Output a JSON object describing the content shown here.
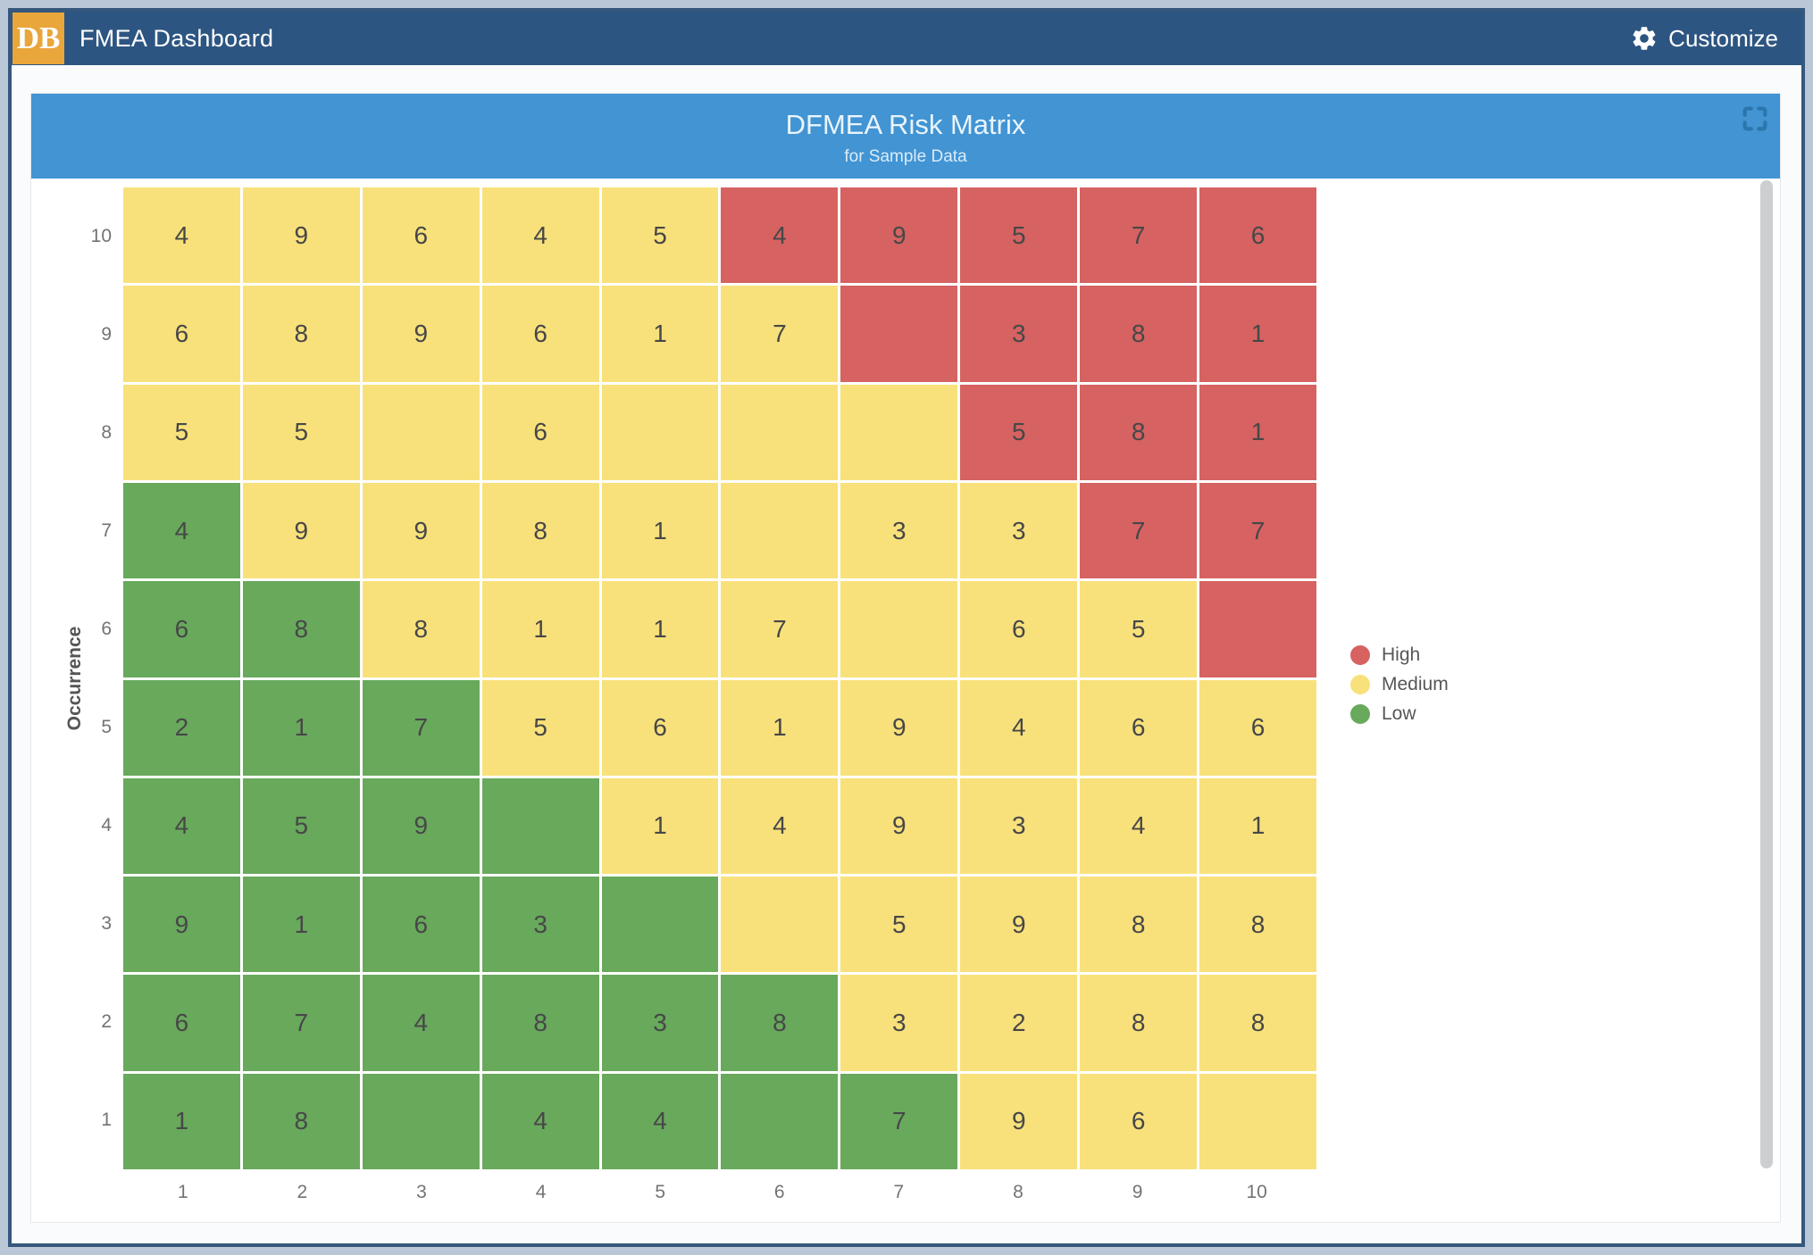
{
  "header": {
    "logo_text": "DB",
    "title": "FMEA Dashboard",
    "customize_label": "Customize"
  },
  "panel": {
    "title": "DFMEA Risk Matrix",
    "subtitle": "for Sample Data"
  },
  "colors": {
    "header_bar": "#2d5581",
    "panel_header": "#4294d3",
    "logo_bg": "#e9a63b",
    "high": "#d66262",
    "medium": "#f8e17b",
    "low": "#68a95c"
  },
  "chart_data": {
    "type": "heatmap",
    "title": "DFMEA Risk Matrix",
    "subtitle": "for Sample Data",
    "xlabel": "",
    "ylabel": "Occurrence",
    "x_ticks": [
      "1",
      "2",
      "3",
      "4",
      "5",
      "6",
      "7",
      "8",
      "9",
      "10"
    ],
    "y_ticks": [
      "10",
      "9",
      "8",
      "7",
      "6",
      "5",
      "4",
      "3",
      "2",
      "1"
    ],
    "legend_position": "right",
    "legend": [
      {
        "label": "High",
        "level": "H",
        "color": "#d66262"
      },
      {
        "label": "Medium",
        "level": "M",
        "color": "#f8e17b"
      },
      {
        "label": "Low",
        "level": "L",
        "color": "#68a95c"
      }
    ],
    "rows": [
      {
        "occurrence": "10",
        "cells": [
          [
            "4",
            "M"
          ],
          [
            "9",
            "M"
          ],
          [
            "6",
            "M"
          ],
          [
            "4",
            "M"
          ],
          [
            "5",
            "M"
          ],
          [
            "4",
            "H"
          ],
          [
            "9",
            "H"
          ],
          [
            "5",
            "H"
          ],
          [
            "7",
            "H"
          ],
          [
            "6",
            "H"
          ]
        ]
      },
      {
        "occurrence": "9",
        "cells": [
          [
            "6",
            "M"
          ],
          [
            "8",
            "M"
          ],
          [
            "9",
            "M"
          ],
          [
            "6",
            "M"
          ],
          [
            "1",
            "M"
          ],
          [
            "7",
            "M"
          ],
          [
            "",
            "H"
          ],
          [
            "3",
            "H"
          ],
          [
            "8",
            "H"
          ],
          [
            "1",
            "H"
          ]
        ]
      },
      {
        "occurrence": "8",
        "cells": [
          [
            "5",
            "M"
          ],
          [
            "5",
            "M"
          ],
          [
            "",
            "M"
          ],
          [
            "6",
            "M"
          ],
          [
            "",
            "M"
          ],
          [
            "",
            "M"
          ],
          [
            "",
            "M"
          ],
          [
            "5",
            "H"
          ],
          [
            "8",
            "H"
          ],
          [
            "1",
            "H"
          ]
        ]
      },
      {
        "occurrence": "7",
        "cells": [
          [
            "4",
            "L"
          ],
          [
            "9",
            "M"
          ],
          [
            "9",
            "M"
          ],
          [
            "8",
            "M"
          ],
          [
            "1",
            "M"
          ],
          [
            "",
            "M"
          ],
          [
            "3",
            "M"
          ],
          [
            "3",
            "M"
          ],
          [
            "7",
            "H"
          ],
          [
            "7",
            "H"
          ]
        ]
      },
      {
        "occurrence": "6",
        "cells": [
          [
            "6",
            "L"
          ],
          [
            "8",
            "L"
          ],
          [
            "8",
            "M"
          ],
          [
            "1",
            "M"
          ],
          [
            "1",
            "M"
          ],
          [
            "7",
            "M"
          ],
          [
            "",
            "M"
          ],
          [
            "6",
            "M"
          ],
          [
            "5",
            "M"
          ],
          [
            "",
            "H"
          ]
        ]
      },
      {
        "occurrence": "5",
        "cells": [
          [
            "2",
            "L"
          ],
          [
            "1",
            "L"
          ],
          [
            "7",
            "L"
          ],
          [
            "5",
            "M"
          ],
          [
            "6",
            "M"
          ],
          [
            "1",
            "M"
          ],
          [
            "9",
            "M"
          ],
          [
            "4",
            "M"
          ],
          [
            "6",
            "M"
          ],
          [
            "6",
            "M"
          ]
        ]
      },
      {
        "occurrence": "4",
        "cells": [
          [
            "4",
            "L"
          ],
          [
            "5",
            "L"
          ],
          [
            "9",
            "L"
          ],
          [
            "",
            "L"
          ],
          [
            "1",
            "M"
          ],
          [
            "4",
            "M"
          ],
          [
            "9",
            "M"
          ],
          [
            "3",
            "M"
          ],
          [
            "4",
            "M"
          ],
          [
            "1",
            "M"
          ]
        ]
      },
      {
        "occurrence": "3",
        "cells": [
          [
            "9",
            "L"
          ],
          [
            "1",
            "L"
          ],
          [
            "6",
            "L"
          ],
          [
            "3",
            "L"
          ],
          [
            "",
            "L"
          ],
          [
            "",
            "M"
          ],
          [
            "5",
            "M"
          ],
          [
            "9",
            "M"
          ],
          [
            "8",
            "M"
          ],
          [
            "8",
            "M"
          ]
        ]
      },
      {
        "occurrence": "2",
        "cells": [
          [
            "6",
            "L"
          ],
          [
            "7",
            "L"
          ],
          [
            "4",
            "L"
          ],
          [
            "8",
            "L"
          ],
          [
            "3",
            "L"
          ],
          [
            "8",
            "L"
          ],
          [
            "3",
            "M"
          ],
          [
            "2",
            "M"
          ],
          [
            "8",
            "M"
          ],
          [
            "8",
            "M"
          ]
        ]
      },
      {
        "occurrence": "1",
        "cells": [
          [
            "1",
            "L"
          ],
          [
            "8",
            "L"
          ],
          [
            "",
            "L"
          ],
          [
            "4",
            "L"
          ],
          [
            "4",
            "L"
          ],
          [
            "",
            "L"
          ],
          [
            "7",
            "L"
          ],
          [
            "9",
            "M"
          ],
          [
            "6",
            "M"
          ],
          [
            "",
            "M"
          ]
        ]
      }
    ]
  }
}
